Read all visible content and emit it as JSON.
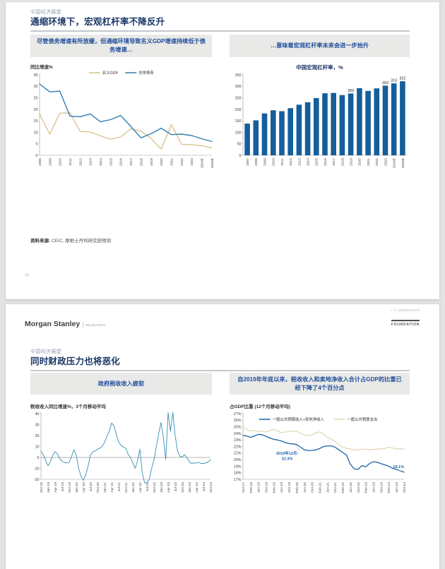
{
  "page1": {
    "eyebrow": "中国经济展望",
    "title": "通缩环境下，宏观杠杆率不降反升",
    "headers": {
      "left": "尽管债务增速有所放缓，但通缩环境导致名义GDP增速持续低于债务增速…",
      "right": "…意味着宏观杠杆率未来会进一步抬升"
    },
    "left_chart_ylabel": "同比增速%",
    "right_chart_title": "中国宏观杠杆率，%",
    "source_label": "资料来源:",
    "source_text": " CEIC, 摩根士丹利研究部预测",
    "page_number": "18"
  },
  "page2": {
    "watermark": "+ V. qianjiaoboanft",
    "logo_text": "Morgan Stanley",
    "logo_divider": "|",
    "logo_sub": "RESEARCH",
    "foundation": "FOUNDATION",
    "eyebrow": "中国经济展望",
    "title": "同时财政压力也将恶化",
    "headers": {
      "left": "政府税收收入疲软",
      "right": "自2019年年底以来，税收收入和卖地净收入合计占GDP的比重已经下降了4个百分点"
    },
    "left_chart_label": "税收收入同比增速%，3个月移动平均",
    "right_chart_label": "占GDP比重 (12个月移动平均)"
  },
  "colors": {
    "title_navy": "#1b3767",
    "header_box_blue": "#1f4e9c",
    "bar_blue": "#155e9b",
    "debt_line_blue": "#2f7fad",
    "gdp_line_gold": "#d7c188",
    "tax_line_teal": "#3590b1",
    "revenue_line_blue": "#1c64a9",
    "expenditure_line_tan": "#e4d9b6"
  },
  "chart_data": [
    {
      "type": "line",
      "title": "名义GDP与总体债务同比增速",
      "ylabel": "同比增速%",
      "x": [
        "2008",
        "2009",
        "2010",
        "2011",
        "2012",
        "2013",
        "2014",
        "2015",
        "2016",
        "2017",
        "2018",
        "2019",
        "2020",
        "2021",
        "2022",
        "2023",
        "2024E",
        "2025E"
      ],
      "ylim": [
        0,
        35
      ],
      "yticks": [
        0,
        5,
        10,
        15,
        20,
        25,
        30,
        35
      ],
      "legend": true,
      "legend_y": 7,
      "series": [
        {
          "name": "名义GDP",
          "color": "#d7c188",
          "width": 1.3,
          "values": [
            18,
            9.2,
            18.3,
            18.5,
            10.4,
            10.1,
            8.5,
            7,
            8,
            11.5,
            10.5,
            7.3,
            2.7,
            13.4,
            4.8,
            4.6,
            4.2,
            3.2
          ]
        },
        {
          "name": "总体债务",
          "color": "#2f7fad",
          "width": 1.4,
          "values": [
            31,
            27.6,
            27.9,
            17,
            16.8,
            18,
            14.6,
            15.5,
            17.3,
            12.6,
            7.6,
            9.4,
            11.8,
            9,
            9.2,
            8.6,
            7.2,
            6
          ]
        }
      ]
    },
    {
      "type": "bar",
      "title": "中国宏观杠杆率，%",
      "color": "#155e9b",
      "x": [
        "2007",
        "2008",
        "2009",
        "2010",
        "2011",
        "2012",
        "2013",
        "2014",
        "2015",
        "2016",
        "2017",
        "2018",
        "2019",
        "2020",
        "2021",
        "2022",
        "2023",
        "2024E",
        "2025E"
      ],
      "values": [
        138,
        152,
        182,
        196,
        192,
        205,
        220,
        231,
        249,
        270,
        271,
        262,
        269,
        292,
        280,
        291,
        303,
        313,
        322
      ],
      "bar_labels": [
        null,
        null,
        null,
        null,
        null,
        null,
        null,
        null,
        null,
        null,
        null,
        null,
        "269",
        null,
        null,
        null,
        "303",
        "313",
        "322"
      ],
      "ylim": [
        0,
        350
      ],
      "yticks": [
        0,
        50,
        100,
        150,
        200,
        250,
        300,
        350
      ]
    },
    {
      "type": "line",
      "title": "税收收入同比增速%，3个月移动平均",
      "tick_every": 3,
      "zero_line": true,
      "x": [
        "Oct-18",
        "Nov-18",
        "Dec-18",
        "Jan-19",
        "Feb-19",
        "Mar-19",
        "Apr-19",
        "May-19",
        "Jun-19",
        "Jul-19",
        "Aug-19",
        "Sep-19",
        "Oct-19",
        "Nov-19",
        "Dec-19",
        "Jan-20",
        "Feb-20",
        "Mar-20",
        "Apr-20",
        "May-20",
        "Jun-20",
        "Jul-20",
        "Aug-20",
        "Sep-20",
        "Oct-20",
        "Nov-20",
        "Dec-20",
        "Jan-21",
        "Feb-21",
        "Mar-21",
        "Apr-21",
        "May-21",
        "Jun-21",
        "Jul-21",
        "Aug-21",
        "Sep-21",
        "Oct-21",
        "Nov-21",
        "Dec-21",
        "Jan-22",
        "Feb-22",
        "Mar-22",
        "Apr-22",
        "May-22",
        "Jun-22",
        "Jul-22",
        "Aug-22",
        "Sep-22",
        "Oct-22",
        "Nov-22",
        "Dec-22",
        "Jan-23",
        "Feb-23",
        "Mar-23",
        "Apr-23",
        "May-23",
        "Jun-23",
        "Jul-23",
        "Aug-23",
        "Sep-23",
        "Oct-23",
        "Nov-23",
        "Dec-23",
        "Jan-24",
        "Feb-24",
        "Mar-24",
        "Apr-24",
        "May-24",
        "Jun-24",
        "Jul-24",
        "Aug-24",
        "Sep-24",
        "Oct-24"
      ],
      "ylim": [
        -20,
        40
      ],
      "yticks": [
        -20,
        -10,
        0,
        10,
        20,
        30,
        40
      ],
      "series": [
        {
          "name": "税收收入同比增速",
          "color": "#3590b1",
          "width": 0.9,
          "values": [
            6,
            2.5,
            -3,
            -7.5,
            -4,
            2,
            5.5,
            3,
            -1,
            -3.5,
            -4.5,
            -5,
            -4.5,
            1,
            7,
            2,
            -10,
            -17,
            -21,
            -16,
            -8,
            2,
            5,
            6,
            7.5,
            8.5,
            10,
            14,
            19,
            24,
            31.5,
            29,
            21,
            14,
            11,
            9.5,
            8.5,
            3,
            0,
            -5,
            -10,
            -3,
            7.5,
            -14,
            -24,
            -26,
            -20,
            -10,
            -2,
            10,
            22,
            32,
            18,
            -2,
            41,
            24,
            41,
            20,
            6,
            1,
            0.5,
            2.5,
            0,
            -4,
            -5.5,
            -5,
            -5,
            -4.5,
            -5.5,
            -5.5,
            -5,
            -4,
            -2
          ]
        }
      ]
    },
    {
      "type": "line",
      "title": "占GDP比重 (12个月移动平均)",
      "tick_every": 2,
      "percent": true,
      "legend": true,
      "legend_y": 16,
      "x": [
        "Oct-17",
        "Dec-17",
        "Feb-18",
        "Apr-18",
        "Jun-18",
        "Aug-18",
        "Oct-18",
        "Dec-18",
        "Feb-19",
        "Apr-19",
        "Jun-19",
        "Aug-19",
        "Oct-19",
        "Dec-19",
        "Feb-20",
        "Apr-20",
        "Jun-20",
        "Aug-20",
        "Oct-20",
        "Dec-20",
        "Feb-21",
        "Apr-21",
        "Jun-21",
        "Aug-21",
        "Oct-21",
        "Dec-21",
        "Feb-22",
        "Apr-22",
        "Jun-22",
        "Aug-22",
        "Oct-22",
        "Dec-22",
        "Feb-23",
        "Apr-23",
        "Jun-23",
        "Aug-23",
        "Oct-23",
        "Dec-23",
        "Feb-24",
        "Apr-24",
        "Jun-24",
        "Aug-24",
        "Oct-24"
      ],
      "ylim": [
        17,
        27
      ],
      "yticks": [
        17,
        18,
        19,
        20,
        21,
        22,
        23,
        24,
        25,
        26,
        27
      ],
      "series": [
        {
          "name": "一般公共预算收入+卖地净收入",
          "color": "#1c64a9",
          "width": 1.3,
          "values": [
            23.7,
            23.6,
            23.4,
            23.6,
            23.85,
            23.8,
            23.55,
            23.3,
            23.1,
            23.0,
            22.85,
            22.6,
            22.45,
            22.4,
            22.3,
            21.9,
            21.5,
            21.4,
            21.4,
            21.5,
            21.7,
            22.0,
            22.1,
            22.1,
            21.9,
            21.5,
            21.1,
            20.7,
            19.3,
            18.6,
            18.5,
            19.1,
            18.9,
            19.4,
            19.7,
            19.6,
            19.4,
            19.2,
            19.0,
            18.7,
            18.5,
            18.3,
            18.1
          ]
        },
        {
          "name": "一般公共预算支出",
          "color": "#e4d9b6",
          "width": 1.3,
          "values": [
            25.0,
            24.6,
            24.35,
            24.45,
            24.25,
            24.35,
            24.2,
            24.45,
            24.65,
            24.35,
            24.1,
            24.2,
            24.35,
            24.3,
            24.35,
            24.0,
            23.8,
            23.65,
            23.8,
            24.05,
            24.25,
            23.9,
            23.4,
            23.1,
            22.8,
            22.3,
            21.9,
            21.7,
            21.6,
            21.5,
            21.5,
            21.6,
            21.6,
            21.5,
            21.55,
            21.6,
            21.65,
            21.7,
            21.9,
            21.8,
            21.6,
            21.65,
            21.6
          ]
        }
      ],
      "annotations": [
        {
          "i": 13,
          "v": 22.4,
          "tx": -8,
          "ty": 15,
          "anchor": "middle",
          "color": "#1c64a9",
          "lines": [
            "2019年12月:",
            "22.4%"
          ],
          "conn": [
            10,
            9,
            4,
            2
          ]
        },
        {
          "i": 42,
          "v": 18.1,
          "tx": 0,
          "ty": -6,
          "anchor": "end",
          "color": "#1c64a9",
          "lines": [
            "18.1%"
          ],
          "conn": [
            -8,
            -3,
            -1,
            -1
          ]
        }
      ]
    }
  ]
}
